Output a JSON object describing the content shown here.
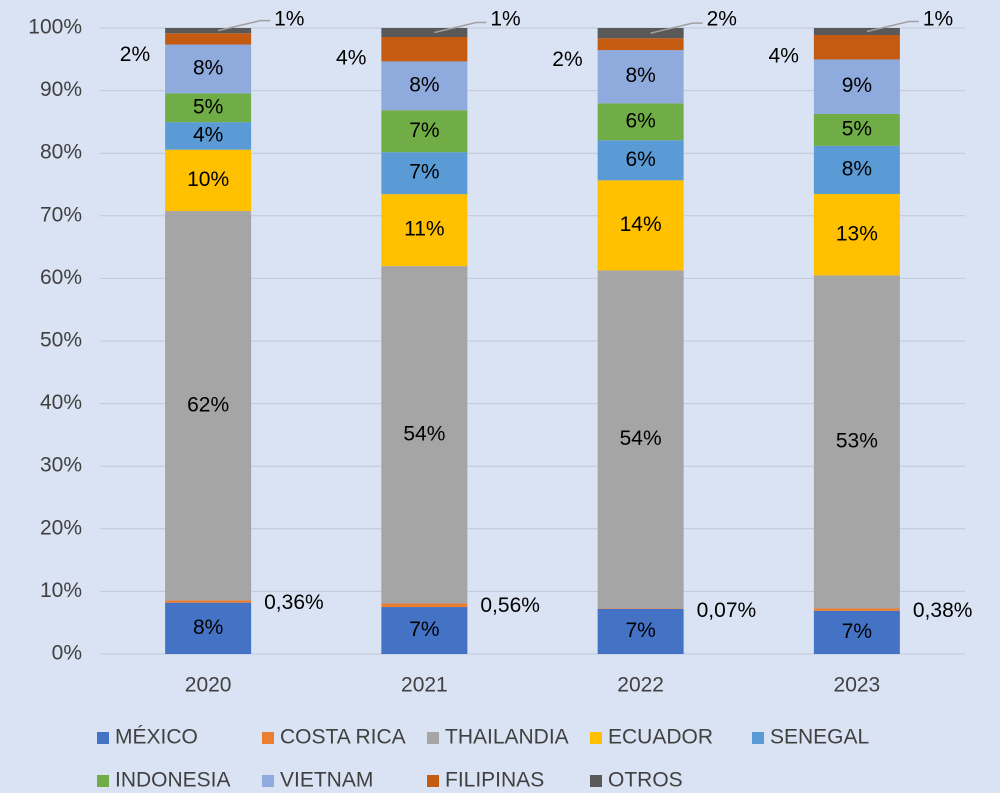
{
  "chart_data": {
    "type": "stacked_bar",
    "categories": [
      "2020",
      "2021",
      "2022",
      "2023"
    ],
    "ylim": [
      0,
      100
    ],
    "yticks": [
      {
        "value": 0,
        "label": "0%"
      },
      {
        "value": 10,
        "label": "10%"
      },
      {
        "value": 20,
        "label": "20%"
      },
      {
        "value": 30,
        "label": "30%"
      },
      {
        "value": 40,
        "label": "40%"
      },
      {
        "value": 50,
        "label": "50%"
      },
      {
        "value": 60,
        "label": "60%"
      },
      {
        "value": 70,
        "label": "70%"
      },
      {
        "value": 80,
        "label": "80%"
      },
      {
        "value": 90,
        "label": "90%"
      },
      {
        "value": 100,
        "label": "100%"
      }
    ],
    "grid": true,
    "series": [
      {
        "name": "MÉXICO",
        "color": "#4472c4",
        "values": [
          8.2,
          7.5,
          7.2,
          6.9
        ],
        "value_labels": [
          "8%",
          "7%",
          "7%",
          "7%"
        ]
      },
      {
        "name": "COSTA RICA",
        "color": "#ed7d31",
        "values": [
          0.36,
          0.56,
          0.07,
          0.38
        ],
        "value_labels": [
          "0,36%",
          "0,56%",
          "0,07%",
          "0,38%"
        ]
      },
      {
        "name": "THAILANDIA",
        "color": "#a5a5a5",
        "values": [
          62.2,
          53.9,
          54.0,
          53.2
        ],
        "value_labels": [
          "62%",
          "54%",
          "54%",
          "53%"
        ]
      },
      {
        "name": "ECUADOR",
        "color": "#ffc000",
        "values": [
          9.8,
          11.5,
          14.4,
          13.0
        ],
        "value_labels": [
          "10%",
          "11%",
          "14%",
          "13%"
        ]
      },
      {
        "name": "SENEGAL",
        "color": "#5b9bd5",
        "values": [
          4.4,
          6.7,
          6.4,
          7.7
        ],
        "value_labels": [
          "4%",
          "7%",
          "6%",
          "8%"
        ]
      },
      {
        "name": "INDONESIA",
        "color": "#70ad47",
        "values": [
          4.6,
          6.7,
          5.9,
          5.1
        ],
        "value_labels": [
          "5%",
          "7%",
          "6%",
          "5%"
        ]
      },
      {
        "name": "VIETNAM",
        "color": "#8faadc",
        "values": [
          7.8,
          7.8,
          8.5,
          8.7
        ],
        "value_labels": [
          "8%",
          "8%",
          "8%",
          "9%"
        ]
      },
      {
        "name": "FILIPINAS",
        "color": "#c55a11",
        "values": [
          1.8,
          3.9,
          1.9,
          3.9
        ],
        "value_labels": [
          "2%",
          "4%",
          "2%",
          "4%"
        ]
      },
      {
        "name": "OTROS",
        "color": "#595959",
        "values": [
          0.84,
          1.44,
          1.63,
          1.12
        ],
        "value_labels": [
          "1%",
          "1%",
          "2%",
          "1%"
        ]
      }
    ]
  }
}
